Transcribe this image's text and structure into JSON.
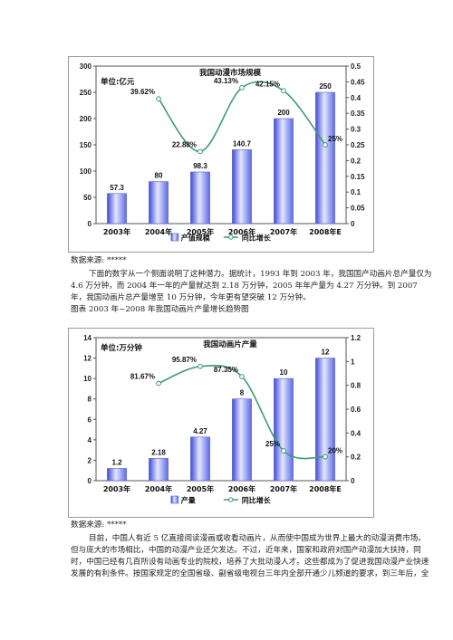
{
  "charts": [
    {
      "type": "bar",
      "title": "我国动漫市场规模",
      "unit_label": "单位:亿元",
      "categories": [
        "2003年",
        "2004年",
        "2005年",
        "2006年",
        "2007年",
        "2008年E"
      ],
      "series": [
        {
          "name": "产值规模",
          "type": "bar",
          "axis": "left",
          "values": [
            57.3,
            80,
            98.3,
            140.7,
            200,
            250
          ],
          "labels": [
            "57.3",
            "80",
            "98.3",
            "140.7",
            "200",
            "250"
          ]
        },
        {
          "name": "同比增长",
          "type": "line",
          "axis": "right",
          "values": [
            null,
            0.3962,
            0.2288,
            0.4313,
            0.4215,
            0.25
          ],
          "labels": [
            "",
            "39.62%",
            "22.88%",
            "43.13%",
            "42.15%",
            "25%"
          ]
        }
      ],
      "y_left": {
        "min": 0,
        "max": 300,
        "ticks": [
          0,
          50,
          100,
          150,
          200,
          250,
          300
        ]
      },
      "y_right": {
        "min": 0,
        "max": 0.5,
        "ticks": [
          "0",
          "0.05",
          "0.1",
          "0.15",
          "0.2",
          "0.25",
          "0.3",
          "0.35",
          "0.4",
          "0.45",
          "0.5"
        ]
      },
      "colors": {
        "bar": "#7e89ee",
        "line": "#3f9b72"
      }
    },
    {
      "type": "bar",
      "title": "我国动画片产量",
      "unit_label": "单位:万分钟",
      "categories": [
        "2003年",
        "2004年",
        "2005年",
        "2006年",
        "2007年",
        "2008年E"
      ],
      "series": [
        {
          "name": "产量",
          "type": "bar",
          "axis": "left",
          "values": [
            1.2,
            2.18,
            4.27,
            8,
            10,
            12
          ],
          "labels": [
            "1.2",
            "2.18",
            "4.27",
            "8",
            "10",
            "12"
          ]
        },
        {
          "name": "同比增长",
          "type": "line",
          "axis": "right",
          "values": [
            null,
            0.8167,
            0.9587,
            0.8735,
            0.25,
            0.2
          ],
          "labels": [
            "",
            "81.67%",
            "95.87%",
            "87.35%",
            "25%",
            "20%"
          ]
        }
      ],
      "y_left": {
        "min": 0,
        "max": 14,
        "ticks": [
          0,
          2,
          4,
          6,
          8,
          10,
          12,
          14
        ]
      },
      "y_right": {
        "min": 0,
        "max": 1.2,
        "ticks": [
          "0",
          "0.2",
          "0.4",
          "0.6",
          "0.8",
          "1",
          "1.2"
        ]
      },
      "colors": {
        "bar": "#7e89ee",
        "line": "#3f9b72"
      }
    }
  ],
  "text": {
    "source1": "数据来源: *****",
    "para1_lines": [
      "下面的数字从一个侧面说明了这种潜力。据统计，1993 年到 2003 年，我国国产动画片总产量仅为",
      "4.6 万分钟，而 2004 年一年的产量就达到 2.18 万分钟，2005 年年产量为 4.27 万分钟。到 2007",
      "年，我国动画片总产量增至 10 万分钟，今年更有望突破 12 万分钟。"
    ],
    "caption": "图表  2003 年~2008 年我国动画片产量增长趋势图",
    "source2": "数据来源: *****",
    "para2_lines": [
      "目前，中国人有近 5 亿直接阅读漫画或收看动画片，从而使中国成为世界上最大的动漫消费市场。",
      "但与庞大的市场相比，中国的动漫产业还欠发达。不过，近年来，国家和政府对国产动漫加大扶持，同",
      "时，中国已经有几百所设有动画专业的院校，培养了大批动漫人才。这些都成为了促进我国动漫产业快速",
      "发展的有利条件。按国家规定的全国省级、副省级电视台三年内全部开通少儿频道的要求，到三年后，全"
    ]
  }
}
